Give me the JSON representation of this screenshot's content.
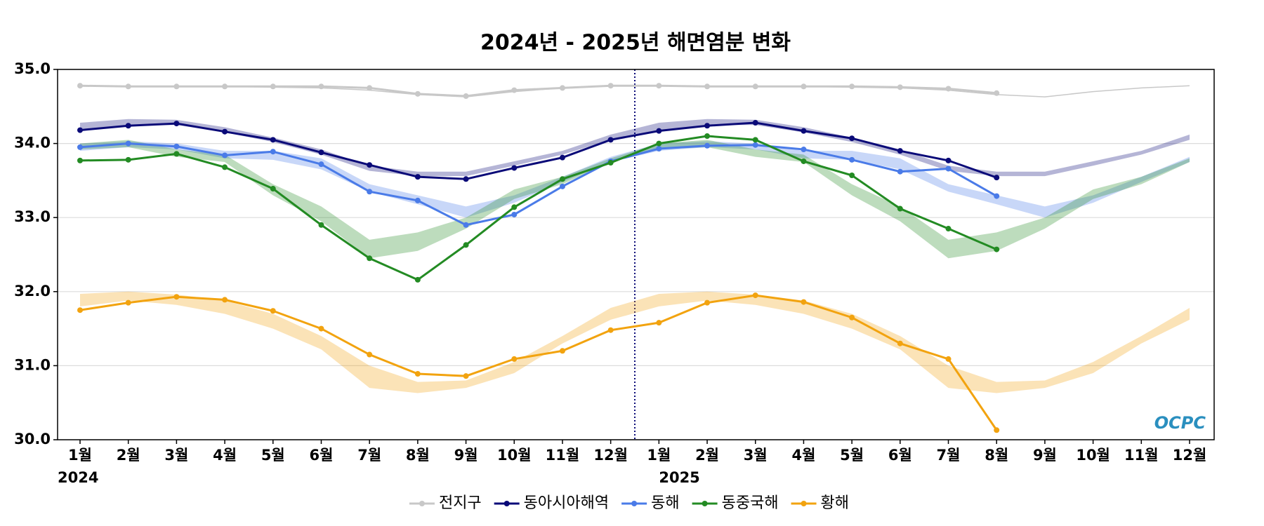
{
  "chart_data": {
    "type": "line",
    "title": "2024년 - 2025년 해면염분 변화",
    "categories": [
      "1월",
      "2월",
      "3월",
      "4월",
      "5월",
      "6월",
      "7월",
      "8월",
      "9월",
      "10월",
      "11월",
      "12월",
      "1월",
      "2월",
      "3월",
      "4월",
      "5월",
      "6월",
      "7월",
      "8월",
      "9월",
      "10월",
      "11월",
      "12월"
    ],
    "years": [
      "2024",
      "2025"
    ],
    "ylim": [
      30,
      35
    ],
    "yticks": [
      {
        "value": 30,
        "label": "30.0"
      },
      {
        "value": 31,
        "label": "31.0"
      },
      {
        "value": 32,
        "label": "32.0"
      },
      {
        "value": 33,
        "label": "33.0"
      },
      {
        "value": 34,
        "label": "34.0"
      },
      {
        "value": 35,
        "label": "35.0"
      }
    ],
    "grid": true,
    "legend": "bottom",
    "logo": "OCPC",
    "series": [
      {
        "name": "전지구",
        "color": "#c8c8c8",
        "values": [
          34.78,
          34.77,
          34.77,
          34.77,
          34.77,
          34.77,
          34.75,
          34.67,
          34.64,
          34.72,
          34.75,
          34.78,
          34.78,
          34.77,
          34.77,
          34.77,
          34.77,
          34.76,
          34.74,
          34.68,
          null,
          null,
          null,
          null
        ],
        "clim": [
          34.78,
          34.77,
          34.77,
          34.77,
          34.76,
          34.75,
          34.72,
          34.66,
          34.63,
          34.7,
          34.75,
          34.78
        ]
      },
      {
        "name": "동아시아해역",
        "color": "#0a0a78",
        "values": [
          34.18,
          34.24,
          34.27,
          34.16,
          34.05,
          33.88,
          33.71,
          33.55,
          33.52,
          33.67,
          33.81,
          34.05,
          34.17,
          34.24,
          34.28,
          34.17,
          34.07,
          33.9,
          33.77,
          33.54,
          null,
          null,
          null,
          null
        ],
        "clim_low": [
          34.18,
          34.25,
          34.25,
          34.15,
          34.02,
          33.85,
          33.63,
          33.56,
          33.56,
          33.7,
          33.85,
          34.05
        ],
        "clim_high": [
          34.28,
          34.33,
          34.32,
          34.22,
          34.08,
          33.92,
          33.7,
          33.62,
          33.62,
          33.76,
          33.9,
          34.12
        ]
      },
      {
        "name": "동해",
        "color": "#4a7be8",
        "values": [
          33.95,
          34.0,
          33.96,
          33.84,
          33.89,
          33.72,
          33.35,
          33.23,
          32.9,
          33.04,
          33.42,
          33.76,
          33.93,
          33.97,
          33.98,
          33.92,
          33.78,
          33.62,
          33.66,
          33.29,
          null,
          null,
          null,
          null
        ],
        "clim_low": [
          33.9,
          33.95,
          33.92,
          33.8,
          33.78,
          33.65,
          33.35,
          33.18,
          33.0,
          33.2,
          33.48,
          33.75
        ],
        "clim_high": [
          34.0,
          34.03,
          34.0,
          33.9,
          33.9,
          33.8,
          33.45,
          33.3,
          33.15,
          33.3,
          33.55,
          33.82
        ]
      },
      {
        "name": "동중국해",
        "color": "#238b23",
        "values": [
          33.77,
          33.78,
          33.86,
          33.68,
          33.39,
          32.9,
          32.45,
          32.16,
          32.63,
          33.14,
          33.52,
          33.74,
          34.0,
          34.1,
          34.05,
          33.76,
          33.57,
          33.12,
          32.85,
          32.57,
          null,
          null,
          null,
          null
        ],
        "clim_low": [
          33.92,
          33.95,
          33.82,
          33.75,
          33.3,
          32.95,
          32.45,
          32.55,
          32.85,
          33.25,
          33.45,
          33.75
        ],
        "clim_high": [
          34.0,
          34.05,
          33.92,
          33.85,
          33.45,
          33.15,
          32.7,
          32.8,
          33.0,
          33.38,
          33.55,
          33.8
        ]
      },
      {
        "name": "황해",
        "color": "#f2a30f",
        "values": [
          31.75,
          31.85,
          31.93,
          31.89,
          31.74,
          31.5,
          31.15,
          30.89,
          30.86,
          31.09,
          31.2,
          31.48,
          31.58,
          31.85,
          31.95,
          31.86,
          31.65,
          31.3,
          31.09,
          30.13,
          null,
          null,
          null,
          null
        ],
        "clim_low": [
          31.8,
          31.88,
          31.82,
          31.7,
          31.5,
          31.22,
          30.7,
          30.63,
          30.7,
          30.9,
          31.3,
          31.62
        ],
        "clim_high": [
          31.97,
          32.0,
          31.96,
          31.88,
          31.7,
          31.4,
          31.0,
          30.78,
          30.8,
          31.05,
          31.4,
          31.78
        ]
      }
    ]
  }
}
